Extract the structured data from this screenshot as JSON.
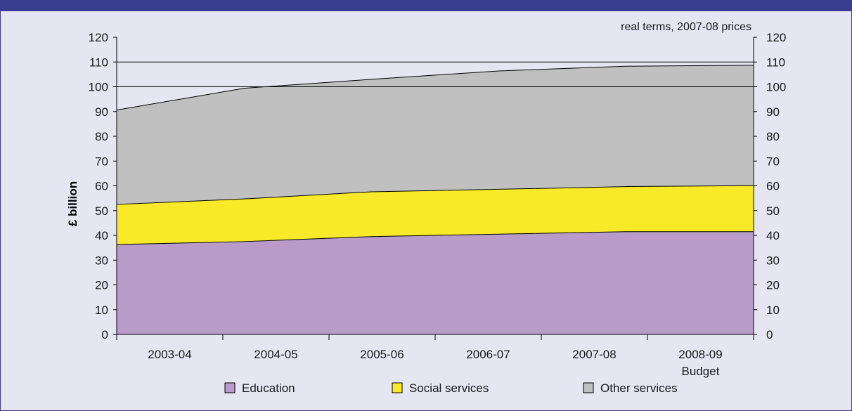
{
  "chart_data": {
    "type": "area",
    "stacked": true,
    "annotation": "real terms, 2007-08 prices",
    "ylabel": "£ billion",
    "ylim": [
      0,
      120
    ],
    "yticks": [
      0,
      10,
      20,
      30,
      40,
      50,
      60,
      70,
      80,
      90,
      100,
      110,
      120
    ],
    "categories": [
      "2003-04",
      "2004-05",
      "2005-06",
      "2006-07",
      "2007-08",
      "2008-09 Budget"
    ],
    "category_lines": [
      [
        "2003-04"
      ],
      [
        "2004-05"
      ],
      [
        "2005-06"
      ],
      [
        "2006-07"
      ],
      [
        "2007-08"
      ],
      [
        "2008-09",
        "Budget"
      ]
    ],
    "series": [
      {
        "name": "Education",
        "color": "#b89bc8",
        "values": [
          36.3,
          37.5,
          39.5,
          40.5,
          41.5,
          41.5
        ]
      },
      {
        "name": "Social services",
        "color": "#f8ea28",
        "values": [
          16.2,
          17.2,
          18.1,
          18.1,
          18.2,
          18.6
        ]
      },
      {
        "name": "Other services",
        "color": "#c0c0c0",
        "values": [
          38.1,
          44.7,
          45.4,
          47.8,
          48.6,
          48.6
        ]
      }
    ],
    "gridlines": [
      100,
      110
    ],
    "legend_position": "bottom"
  }
}
